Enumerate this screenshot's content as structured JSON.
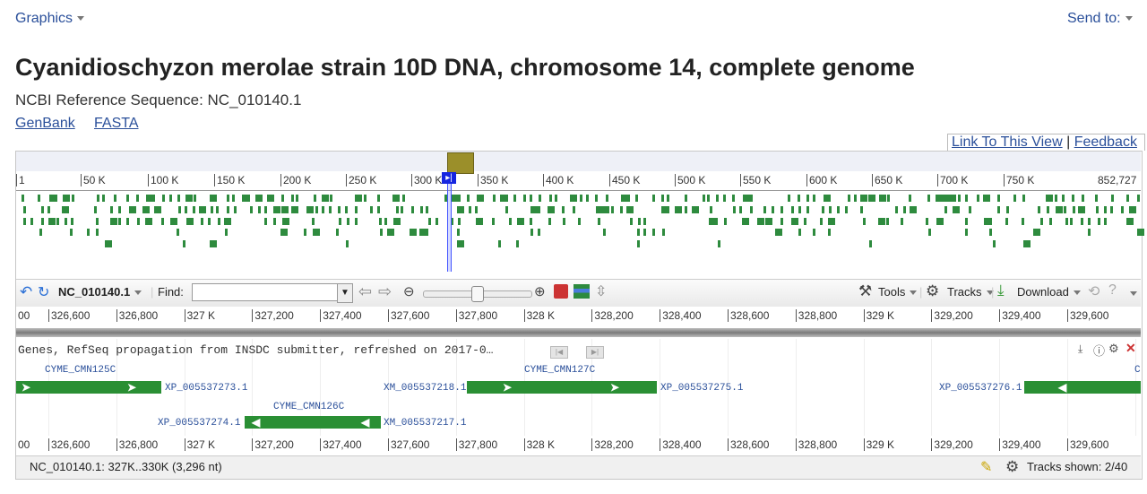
{
  "header": {
    "graphics_label": "Graphics",
    "sendto_label": "Send to:"
  },
  "title": "Cyanidioschyzon merolae strain 10D DNA, chromosome 14, complete genome",
  "subtitle": "NCBI Reference Sequence: NC_010140.1",
  "links": {
    "genbank": "GenBank",
    "fasta": "FASTA",
    "link_view": "Link To This View",
    "sep": "|",
    "feedback": "Feedback"
  },
  "overview_ticks": [
    "1",
    "50 K",
    "100 K",
    "150 K",
    "200 K",
    "250 K",
    "300 K",
    "350 K",
    "400 K",
    "450 K",
    "500 K",
    "550 K",
    "600 K",
    "650 K",
    "700 K",
    "750 K",
    "852,727"
  ],
  "toolbar": {
    "accession": "NC_010140.1",
    "find_label": "Find:",
    "find_value": "",
    "tools_label": "Tools",
    "tracks_label": "Tracks",
    "download_label": "Download",
    "zoom_level": 0.5
  },
  "ruler_ticks": [
    "00",
    "326,600",
    "326,800",
    "327 K",
    "327,200",
    "327,400",
    "327,600",
    "327,800",
    "328 K",
    "328,200",
    "328,400",
    "328,600",
    "328,800",
    "329 K",
    "329,200",
    "329,400",
    "329,600"
  ],
  "track": {
    "title": "Genes, RefSeq propagation from INSDC submitter, refreshed on 2017-0…",
    "genes": [
      {
        "gene": "CYME_CMN125C",
        "protein": "XP_005537273.1",
        "mrna": ""
      },
      {
        "gene": "CYME_CMN126C",
        "protein": "XP_005537274.1",
        "mrna": "XM_005537217.1"
      },
      {
        "gene": "CYME_CMN127C",
        "protein": "XP_005537275.1",
        "mrna": "XM_005537218.1"
      },
      {
        "gene": "C",
        "protein": "XP_005537276.1",
        "mrna": ""
      }
    ]
  },
  "status": {
    "range": "NC_010140.1: 327K..330K (3,296 nt)",
    "tracks_shown": "Tracks shown: 2/40"
  },
  "colors": {
    "gene_green": "#2a8f34",
    "link_blue": "#2a4f9a",
    "marker_olive": "#9b8f2a"
  },
  "icons": [
    "undo-icon",
    "reload-icon",
    "pan-left-icon",
    "pan-right-icon",
    "zoom-out-icon",
    "zoom-in-icon",
    "tools-icon",
    "gear-icon",
    "download-icon",
    "help-icon",
    "close-icon",
    "info-icon",
    "edit-icon"
  ]
}
